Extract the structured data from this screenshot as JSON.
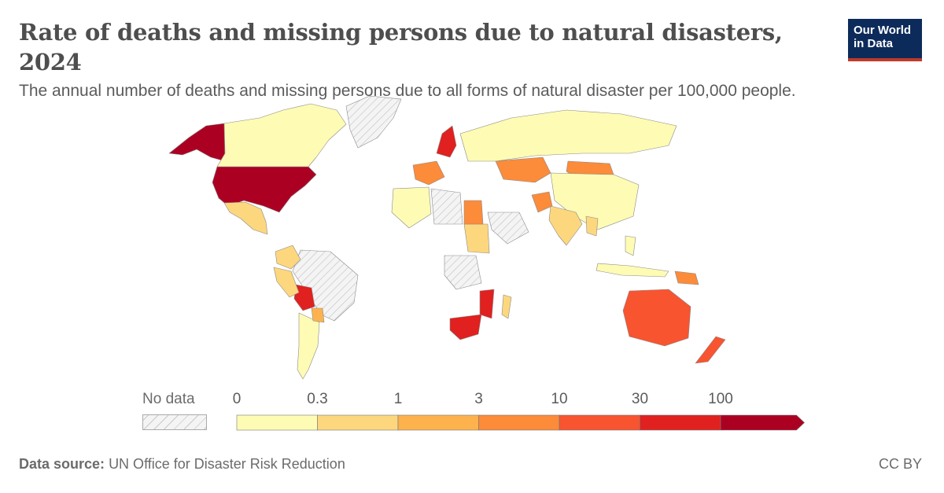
{
  "header": {
    "title": "Rate of deaths and missing persons due to natural disasters, 2024",
    "subtitle": "The annual number of deaths and missing persons due to all forms of natural disaster per 100,000 people."
  },
  "logo": {
    "line1": "Our World",
    "line2": "in Data"
  },
  "legend": {
    "no_data_label": "No data",
    "ticks": [
      "0",
      "0.3",
      "1",
      "3",
      "10",
      "30",
      "100"
    ],
    "colors": [
      "#fefbb4",
      "#fdd77e",
      "#fdb24e",
      "#fc8b3a",
      "#f85430",
      "#e0211f",
      "#ac0022"
    ]
  },
  "footer": {
    "source_label": "Data source:",
    "source_text": "UN Office for Disaster Risk Reduction",
    "license": "CC BY"
  },
  "colors": {
    "no_data": "#e6e6e6",
    "border": "#8a8a8a"
  },
  "chart_data": {
    "type": "choropleth",
    "scale_bins": [
      0,
      0.3,
      1,
      3,
      10,
      30,
      100
    ],
    "regions": [
      {
        "name": "Alaska (United States)",
        "bin": 6
      },
      {
        "name": "United States",
        "bin": 6
      },
      {
        "name": "Canada",
        "bin": 0
      },
      {
        "name": "Greenland",
        "bin": -1
      },
      {
        "name": "Mexico",
        "bin": 1
      },
      {
        "name": "Brazil",
        "bin": -1
      },
      {
        "name": "Bolivia",
        "bin": 5
      },
      {
        "name": "Argentina",
        "bin": 0
      },
      {
        "name": "Colombia",
        "bin": 1
      },
      {
        "name": "Peru",
        "bin": 1
      },
      {
        "name": "Paraguay",
        "bin": 2
      },
      {
        "name": "Russia",
        "bin": 0
      },
      {
        "name": "Kazakhstan",
        "bin": 3
      },
      {
        "name": "Mongolia",
        "bin": 3
      },
      {
        "name": "China",
        "bin": 0
      },
      {
        "name": "India",
        "bin": 1
      },
      {
        "name": "Afghanistan",
        "bin": 3
      },
      {
        "name": "Sudan",
        "bin": 1
      },
      {
        "name": "Egypt",
        "bin": 3
      },
      {
        "name": "Libya",
        "bin": -1
      },
      {
        "name": "Algeria",
        "bin": 0
      },
      {
        "name": "Democratic Republic of Congo",
        "bin": -1
      },
      {
        "name": "Mozambique",
        "bin": 5
      },
      {
        "name": "South Africa",
        "bin": 5
      },
      {
        "name": "Madagascar",
        "bin": 1
      },
      {
        "name": "Saudi Arabia",
        "bin": -1
      },
      {
        "name": "Australia",
        "bin": 4
      },
      {
        "name": "New Zealand",
        "bin": 4
      },
      {
        "name": "Indonesia",
        "bin": 0
      },
      {
        "name": "Papua New Guinea",
        "bin": 3
      },
      {
        "name": "Scandinavia",
        "bin": 5
      },
      {
        "name": "Western Europe",
        "bin": 3
      },
      {
        "name": "Myanmar",
        "bin": 1
      },
      {
        "name": "Philippines",
        "bin": 0
      }
    ]
  }
}
